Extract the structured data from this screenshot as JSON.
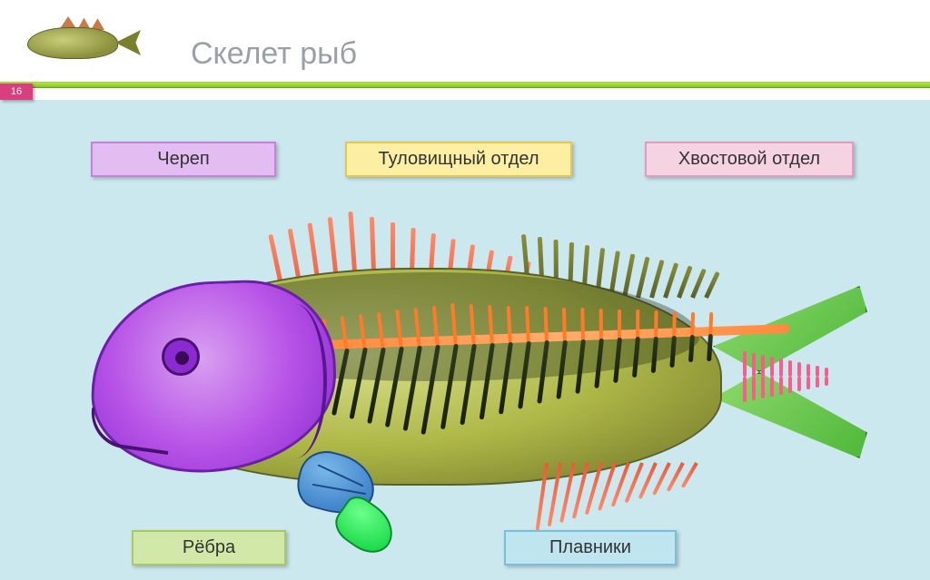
{
  "page_number": "16",
  "title": "Скелет рыб",
  "labels": {
    "skull": "Череп",
    "trunk": "Туловищный отдел",
    "tail": "Хвостовой отдел",
    "ribs": "Рёбра",
    "fins": "Плавники"
  },
  "colors": {
    "background": "#cce8ef",
    "header_bg": "#ffffff",
    "title_text": "#9aa0a6",
    "green_bar_top": "#b5e04d",
    "green_bar_bottom": "#88c725",
    "page_num_bg": "#d83f7e",
    "skull_bg": "#e3bdf2",
    "skull_border": "#c77fe0",
    "trunk_bg": "#fceea2",
    "trunk_border": "#e5c94a",
    "tail_bg": "#f5d3e1",
    "tail_border": "#e49bc0",
    "ribs_bg": "#d2e8a8",
    "ribs_border": "#a7cb5e",
    "fins_bg": "#bfe5f0",
    "fins_border": "#7ac1d8",
    "fish_body_light": "#d9e08c",
    "fish_body_mid": "#aeb847",
    "fish_body_dark": "#7a7f2e",
    "head_light": "#d9a0f0",
    "head_mid": "#b956e8",
    "head_dark": "#8a2bd1",
    "spine": "#ff8a3d",
    "rib_dark": "#2d3a1a",
    "dorsal_fin": "#ff8a6b",
    "dorsal_fin2": "#e85a3a",
    "tail_fin_light": "#8dd96b",
    "tail_fin_dark": "#4fb83a",
    "tail_vertebrae": "#ff5a8a",
    "pectoral_light": "#7ab8e8",
    "pectoral_dark": "#3a7fc8",
    "pelvic_light": "#6bff8a",
    "pelvic_dark": "#1adb4a"
  },
  "diagram": {
    "type": "anatomical_infographic",
    "subject": "fish_skeleton",
    "regions": [
      {
        "name": "skull",
        "part": "head",
        "color_ref": "head"
      },
      {
        "name": "trunk",
        "part": "body_vertebrae_ribs",
        "color_ref": "spine"
      },
      {
        "name": "tail",
        "part": "caudal_vertebrae_fin",
        "color_ref": "tail_fin"
      },
      {
        "name": "ribs",
        "part": "rib_bones",
        "color_ref": "rib_dark"
      },
      {
        "name": "fins",
        "part": "dorsal_anal_pectoral_pelvic",
        "color_ref": "dorsal_fin"
      }
    ],
    "rib_count": 22,
    "dorsal_front_rays": 14,
    "dorsal_back_rays": 14,
    "anal_rays": 12,
    "tail_vertebrae_count": 10,
    "label_fontsize": 20,
    "title_fontsize": 34
  }
}
